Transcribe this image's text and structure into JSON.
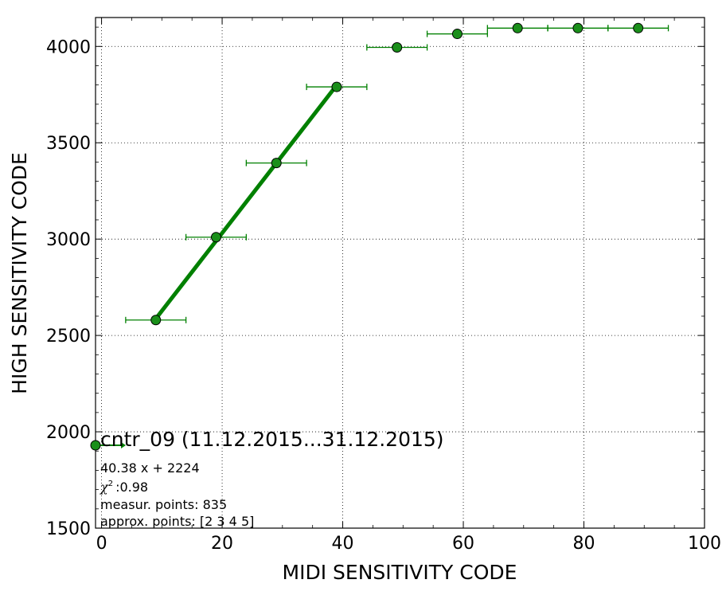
{
  "chart_data": {
    "type": "scatter",
    "xlabel": "MIDI SENSITIVITY CODE",
    "ylabel": "HIGH SENSITIVITY CODE",
    "xlim": [
      -1,
      100
    ],
    "ylim": [
      1500,
      4150
    ],
    "xticks": [
      0,
      20,
      40,
      60,
      80,
      100
    ],
    "yticks": [
      1500,
      2000,
      2500,
      3000,
      3500,
      4000
    ],
    "grid": true,
    "color": "#008000",
    "marker_color": "#1a8f1a",
    "points": {
      "x": [
        9,
        19,
        29,
        39,
        49,
        59,
        69,
        79,
        89
      ],
      "y": [
        2580,
        3010,
        3395,
        3790,
        3995,
        4065,
        4095,
        4095,
        4095
      ],
      "xerr": [
        5,
        5,
        5,
        5,
        5,
        5,
        5,
        5,
        5
      ],
      "yerr": [
        0,
        0,
        20,
        20,
        0,
        0,
        0,
        0,
        0
      ]
    },
    "fit": {
      "x": [
        9,
        39
      ],
      "y": [
        2587,
        3799
      ]
    },
    "legend": {
      "placement": "lower-left",
      "title": "cntr_09 (11.12.2015...31.12.2015)",
      "equation": "40.38 x + 2224",
      "chi_symbol": "χ",
      "chi_exp": "2",
      "chi_value": ":0.98",
      "measur_points": "measur. points: 835",
      "approx_points": "approx. points: [2 3 4 5]"
    }
  }
}
